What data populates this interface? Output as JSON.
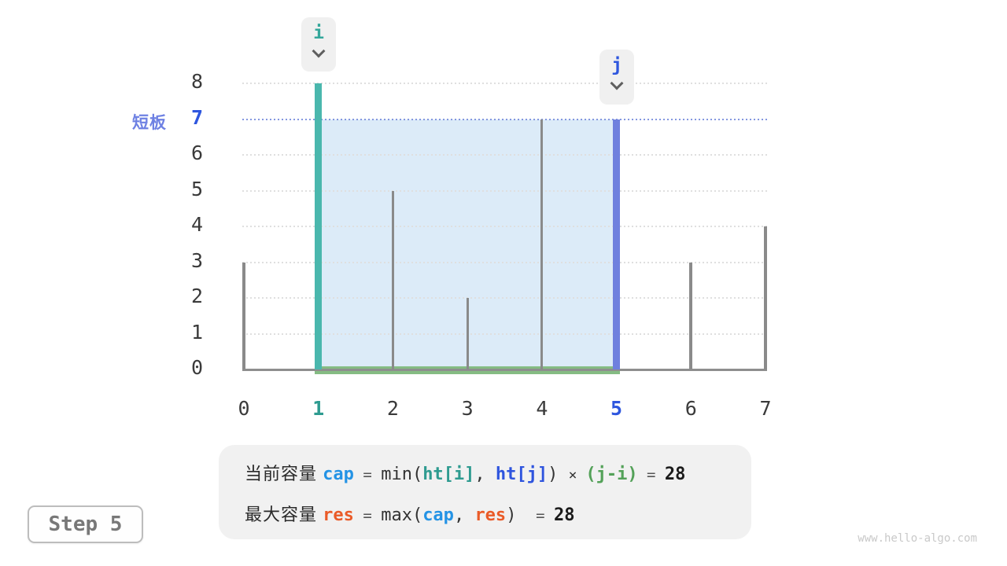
{
  "page": {
    "step_label": "Step 5",
    "watermark": "www.hello-algo.com"
  },
  "colors": {
    "teal_bar": "#4AB7AD",
    "blue_bar": "#6F80DE",
    "gray_bar": "#8A8A8A",
    "green_line": "#85BC83",
    "water": "#DCEBF8",
    "teal_text": "#2E9B90",
    "royal_text": "#2E56DE",
    "sky_text": "#2493E5",
    "green_text": "#53A158",
    "orange_text": "#EA5B28",
    "short_board_text": "#6E81E3"
  },
  "chart_data": {
    "type": "bar",
    "x": [
      0,
      1,
      2,
      3,
      4,
      5,
      6,
      7
    ],
    "heights": [
      3,
      8,
      5,
      2,
      7,
      7,
      3,
      4
    ],
    "x_ticks": [
      0,
      1,
      2,
      3,
      4,
      5,
      6,
      7
    ],
    "y_ticks": [
      0,
      1,
      2,
      3,
      4,
      5,
      6,
      7,
      8
    ],
    "ylim": [
      0,
      8
    ],
    "grid": true,
    "pointers": {
      "i": {
        "index": 1,
        "label": "i"
      },
      "j": {
        "index": 5,
        "label": "j"
      }
    },
    "short_board": {
      "label": "短板",
      "value": 7
    },
    "water_rect": {
      "x_from": 1,
      "x_to": 5,
      "y_top": 7
    },
    "capacity": 28
  },
  "formula": {
    "line1": [
      {
        "t": "当前容量 ",
        "c": "cjk"
      },
      {
        "t": "cap",
        "c": "code sky"
      },
      {
        "t": " = ",
        "c": "eq"
      },
      {
        "t": "min(",
        "c": "plain"
      },
      {
        "t": "ht[i]",
        "c": "code tealc"
      },
      {
        "t": ", ",
        "c": "plain"
      },
      {
        "t": "ht[j]",
        "c": "code royal"
      },
      {
        "t": ") ",
        "c": "plain"
      },
      {
        "t": "× ",
        "c": "times"
      },
      {
        "t": "(j-i)",
        "c": "code greenc"
      },
      {
        "t": " = ",
        "c": "eq"
      },
      {
        "t": "28",
        "c": "result"
      }
    ],
    "line2": [
      {
        "t": "最大容量 ",
        "c": "cjk"
      },
      {
        "t": "res",
        "c": "code orange"
      },
      {
        "t": " = ",
        "c": "eq"
      },
      {
        "t": "max(",
        "c": "plain"
      },
      {
        "t": "cap",
        "c": "code sky"
      },
      {
        "t": ", ",
        "c": "plain"
      },
      {
        "t": "res",
        "c": "code orange"
      },
      {
        "t": ") ",
        "c": "plain"
      },
      {
        "t": " = ",
        "c": "eq"
      },
      {
        "t": "28",
        "c": "result"
      }
    ]
  }
}
